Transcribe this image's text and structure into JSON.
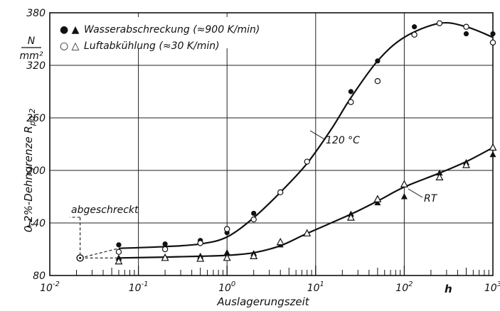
{
  "chart_data": {
    "type": "scatter",
    "title": "",
    "xlabel": "Auslagerungszeit",
    "ylabel": "0,2%-Dehngrenze R",
    "ylabel_sub": "p0,2",
    "y_unit_num": "N",
    "y_unit_den": "mm²",
    "x_scale": "log",
    "xlim": [
      0.01,
      1000
    ],
    "ylim": [
      80,
      380
    ],
    "x_ticks": [
      {
        "value": 0.01,
        "base": "10",
        "exp": "-2"
      },
      {
        "value": 0.1,
        "base": "10",
        "exp": "-1"
      },
      {
        "value": 1,
        "base": "10",
        "exp": "0"
      },
      {
        "value": 10,
        "base": "10",
        "exp": "1"
      },
      {
        "value": 100,
        "base": "10",
        "exp": "2"
      },
      {
        "value": 1000,
        "base": "10",
        "exp": "3"
      }
    ],
    "x_unit": "h",
    "y_ticks": [
      "80",
      "140",
      "200",
      "260",
      "320",
      "380"
    ],
    "grid": true,
    "legend_placement": "top-left",
    "legend": [
      {
        "symbols": "● ▲",
        "label": "Wasserabschreckung (≈900 K/min)"
      },
      {
        "symbols": "○ △",
        "label": "Luftabkühlung (≈30 K/min)"
      }
    ],
    "annotations": {
      "quenched": "abgeschreckt",
      "curve_120": "120 °C",
      "curve_rt": "RT"
    },
    "quenched_point": {
      "x": 0.022,
      "y": 100
    },
    "series": [
      {
        "marker": "filled-circle",
        "points": [
          [
            0.06,
            115
          ],
          [
            0.2,
            116
          ],
          [
            0.5,
            120
          ],
          [
            1,
            129
          ],
          [
            2,
            151
          ],
          [
            4,
            175
          ],
          [
            8,
            210
          ],
          [
            25,
            290
          ],
          [
            50,
            325
          ],
          [
            130,
            364
          ],
          [
            250,
            368
          ],
          [
            500,
            356
          ],
          [
            1000,
            356
          ]
        ]
      },
      {
        "marker": "open-circle",
        "points": [
          [
            0.06,
            107
          ],
          [
            0.2,
            110
          ],
          [
            0.5,
            117
          ],
          [
            1,
            133
          ],
          [
            2,
            144
          ],
          [
            4,
            175
          ],
          [
            8,
            210
          ],
          [
            25,
            278
          ],
          [
            50,
            302
          ],
          [
            130,
            355
          ],
          [
            250,
            368
          ],
          [
            500,
            364
          ],
          [
            1000,
            346
          ]
        ]
      },
      {
        "marker": "filled-triangle",
        "points": [
          [
            0.06,
            100
          ],
          [
            0.2,
            101
          ],
          [
            0.5,
            102
          ],
          [
            1,
            106
          ],
          [
            2,
            105
          ],
          [
            4,
            115
          ],
          [
            8,
            128
          ],
          [
            25,
            150
          ],
          [
            50,
            163
          ],
          [
            100,
            170
          ],
          [
            250,
            197
          ],
          [
            500,
            209
          ],
          [
            1000,
            218
          ]
        ]
      },
      {
        "marker": "open-triangle",
        "points": [
          [
            0.06,
            96
          ],
          [
            0.2,
            100
          ],
          [
            0.5,
            99
          ],
          [
            1,
            100
          ],
          [
            2,
            102
          ],
          [
            4,
            118
          ],
          [
            8,
            128
          ],
          [
            25,
            146
          ],
          [
            50,
            167
          ],
          [
            100,
            184
          ],
          [
            250,
            192
          ],
          [
            500,
            206
          ],
          [
            1000,
            226
          ]
        ]
      }
    ],
    "curves": [
      {
        "name_ref": "curve_120",
        "points": [
          [
            0.06,
            111
          ],
          [
            0.2,
            113
          ],
          [
            0.5,
            116
          ],
          [
            1,
            124
          ],
          [
            2,
            146
          ],
          [
            4,
            175
          ],
          [
            8,
            208
          ],
          [
            15,
            247
          ],
          [
            25,
            283
          ],
          [
            50,
            325
          ],
          [
            100,
            352
          ],
          [
            250,
            368
          ],
          [
            500,
            364
          ],
          [
            1000,
            352
          ]
        ]
      },
      {
        "name_ref": "curve_rt",
        "points": [
          [
            0.06,
            100
          ],
          [
            0.2,
            101
          ],
          [
            0.5,
            102
          ],
          [
            1,
            103
          ],
          [
            2,
            106
          ],
          [
            4,
            114
          ],
          [
            8,
            128
          ],
          [
            25,
            150
          ],
          [
            50,
            165
          ],
          [
            100,
            181
          ],
          [
            250,
            197
          ],
          [
            500,
            210
          ],
          [
            1000,
            226
          ]
        ]
      }
    ]
  }
}
